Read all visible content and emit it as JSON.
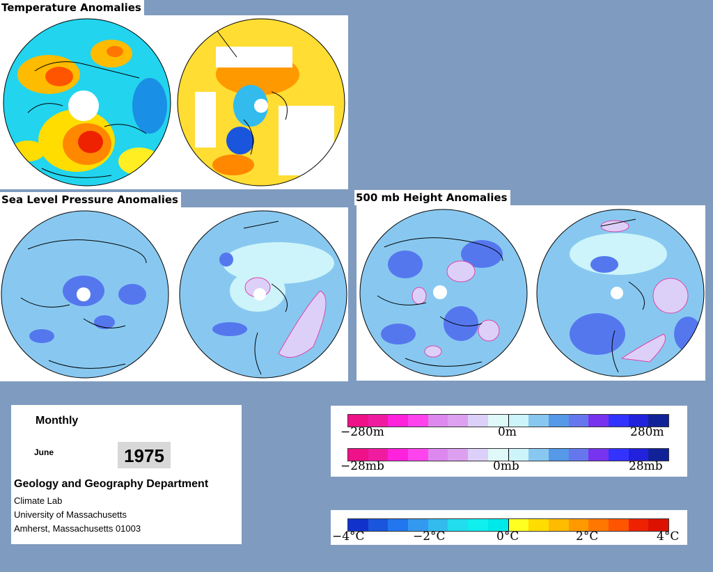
{
  "titles": {
    "temperature": "Temperature Anomalies",
    "slp": "Sea Level Pressure Anomalies",
    "height500": "500 mb Height Anomalies"
  },
  "info": {
    "period": "Monthly",
    "month": "June",
    "year": "1975",
    "department": "Geology and Geography Department",
    "lab": "Climate Lab",
    "university": "University of Massachusetts",
    "address": "Amherst, Massachusetts 01003"
  },
  "scales": {
    "height": {
      "min": "−280m",
      "mid": "0m",
      "max": "280m"
    },
    "pressure": {
      "min": "−28mb",
      "mid": "0mb",
      "max": "28mb"
    },
    "temperature": {
      "t1": "−4°C",
      "t2": "−2°C",
      "t3": "0°C",
      "t4": "2°C",
      "t5": "4°C"
    }
  },
  "colors": {
    "background": "#7f9bbf",
    "pressure_scale": [
      "#ee1188",
      "#f01ca0",
      "#ff22dd",
      "#ff44ee",
      "#dd88ee",
      "#dda0f0",
      "#ddd0f8",
      "#dff8f8",
      "#ccf4fa",
      "#88c8f0",
      "#5599e8",
      "#6677ee",
      "#7733ee",
      "#3333ff",
      "#2222dd",
      "#112299"
    ],
    "temperature_scale": [
      "#1133cc",
      "#1a55dd",
      "#2277ee",
      "#3399ee",
      "#33bbee",
      "#22ddee",
      "#11eeee",
      "#00e8e8",
      "#ffff22",
      "#ffdd00",
      "#ffbb00",
      "#ff9900",
      "#ff7700",
      "#ff5500",
      "#ee2200",
      "#dd1100"
    ]
  }
}
